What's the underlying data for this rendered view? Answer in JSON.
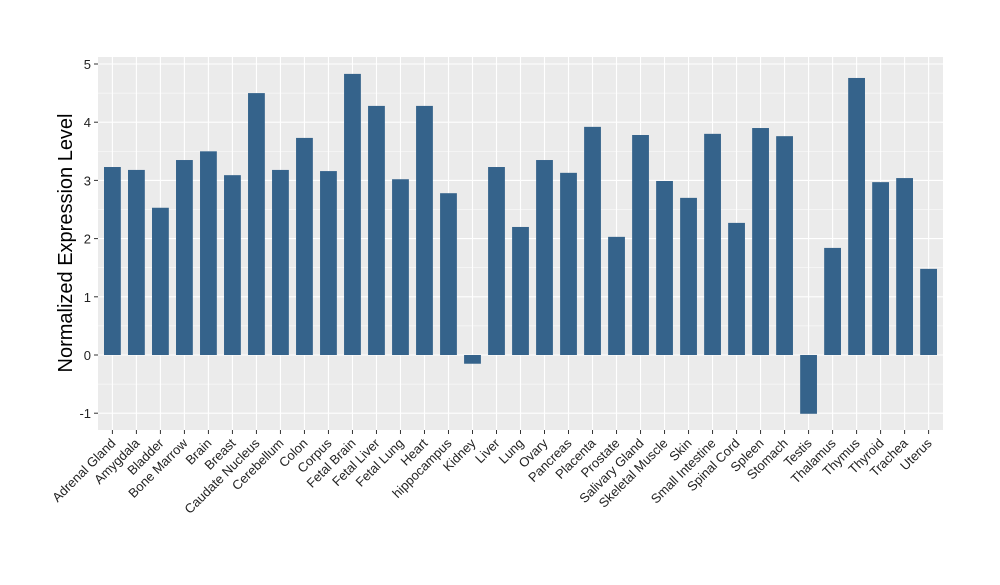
{
  "chart_data": {
    "type": "bar",
    "title": "",
    "xlabel": "",
    "ylabel": "Normalized Expression Level",
    "ylim": [
      -1.25,
      5.1
    ],
    "yticks": [
      -1,
      0,
      1,
      2,
      3,
      4,
      5
    ],
    "grid": true,
    "bar_color": "#35638B",
    "panel_color": "#EBEBEB",
    "categories": [
      "Adrenal Gland",
      "Amygdala",
      "Bladder",
      "Bone Marrow",
      "Brain",
      "Breast",
      "Caudate Nucleus",
      "Cerebellum",
      "Colon",
      "Corpus",
      "Fetal Brain",
      "Fetal Liver",
      "Fetal Lung",
      "Heart",
      "hippocampus",
      "Kidney",
      "Liver",
      "Lung",
      "Ovary",
      "Pancreas",
      "Placenta",
      "Prostate",
      "Salivary Gland",
      "Skeletal Muscle",
      "Skin",
      "Small Intestine",
      "Spinal Cord",
      "Spleen",
      "Stomach",
      "Testis",
      "Thalamus",
      "Thymus",
      "Thyroid",
      "Trachea",
      "Uterus"
    ],
    "values": [
      3.23,
      3.18,
      2.53,
      3.35,
      3.5,
      3.09,
      4.5,
      3.18,
      3.73,
      3.16,
      4.83,
      4.28,
      3.02,
      4.28,
      2.78,
      -0.15,
      3.23,
      2.2,
      3.35,
      3.13,
      3.92,
      2.03,
      3.78,
      2.99,
      2.7,
      3.8,
      2.27,
      3.9,
      3.76,
      -1.01,
      1.84,
      4.76,
      2.97,
      3.04,
      1.48
    ]
  }
}
